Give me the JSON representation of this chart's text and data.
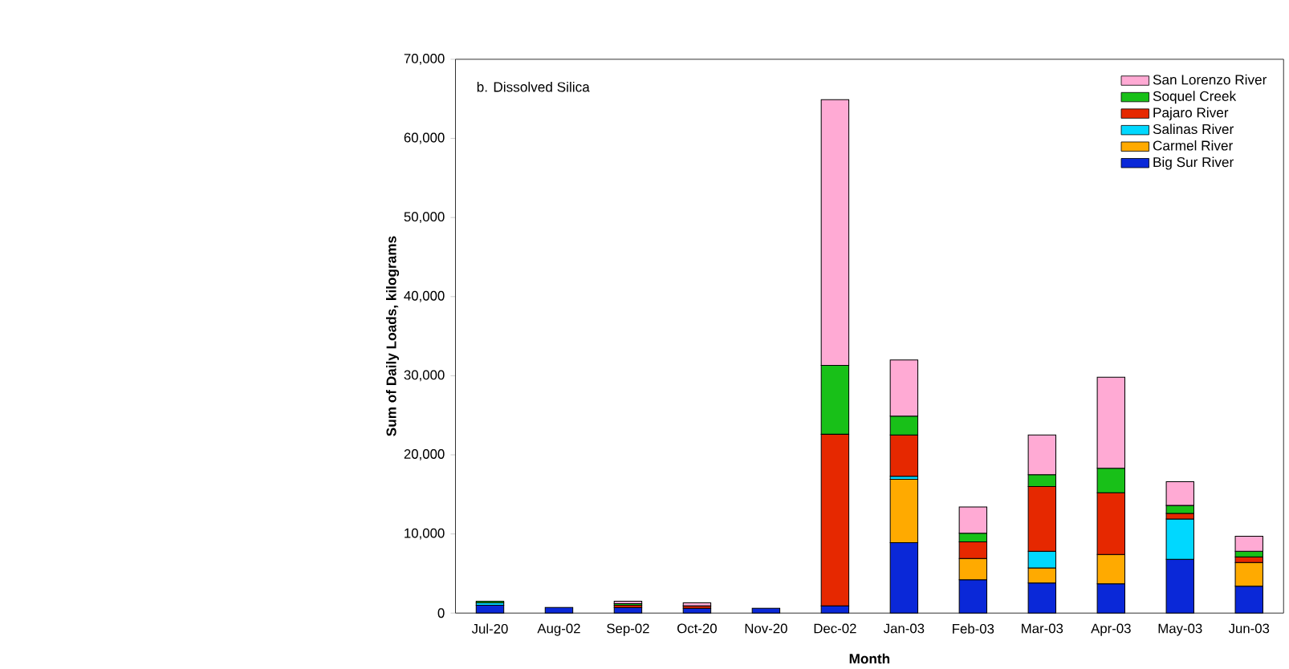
{
  "chart_data": {
    "type": "bar",
    "stacked": true,
    "xlabel": "Month",
    "ylabel": "Sum of Daily Loads, kilograms",
    "annotations": [
      "b. Dissolved Silica"
    ],
    "categories": [
      "Jul-20",
      "Aug-02",
      "Sep-02",
      "Oct-20",
      "Nov-20",
      "Dec-02",
      "Jan-03",
      "Feb-03",
      "Mar-03",
      "Apr-03",
      "May-03",
      "Jun-03"
    ],
    "series": [
      {
        "name": "Big Sur River",
        "color": "#0a28d8",
        "values": [
          1000,
          700,
          700,
          600,
          600,
          900,
          8900,
          4200,
          3800,
          3700,
          6800,
          3400
        ]
      },
      {
        "name": "Carmel River",
        "color": "#ffaa00",
        "values": [
          null,
          null,
          null,
          null,
          null,
          null,
          8000,
          2700,
          1900,
          3700,
          null,
          3000
        ]
      },
      {
        "name": "Salinas River",
        "color": "#00d8ff",
        "values": [
          300,
          null,
          null,
          null,
          null,
          null,
          400,
          null,
          2100,
          null,
          5100,
          null
        ]
      },
      {
        "name": "Pajaro River",
        "color": "#e62800",
        "values": [
          null,
          null,
          300,
          300,
          null,
          21700,
          5200,
          2100,
          8200,
          7800,
          700,
          700
        ]
      },
      {
        "name": "Soquel Creek",
        "color": "#18c018",
        "values": [
          200,
          null,
          200,
          null,
          null,
          8700,
          2400,
          1100,
          1500,
          3100,
          1000,
          700
        ]
      },
      {
        "name": "San Lorenzo River",
        "color": "#ffaad4",
        "values": [
          null,
          null,
          300,
          400,
          null,
          33600,
          7100,
          3300,
          5000,
          11500,
          3000,
          1900
        ]
      }
    ],
    "ylim": [
      0,
      70000
    ],
    "yticks": [
      {
        "value": 0,
        "label": "0"
      },
      {
        "value": 10000,
        "label": "10,000"
      },
      {
        "value": 20000,
        "label": "20,000"
      },
      {
        "value": 30000,
        "label": "30,000"
      },
      {
        "value": 40000,
        "label": "40,000"
      },
      {
        "value": 50000,
        "label": "50,000"
      },
      {
        "value": 60000,
        "label": "60,000"
      },
      {
        "value": 70000,
        "label": "70,000"
      }
    ],
    "legend": "top right",
    "grid": false
  }
}
